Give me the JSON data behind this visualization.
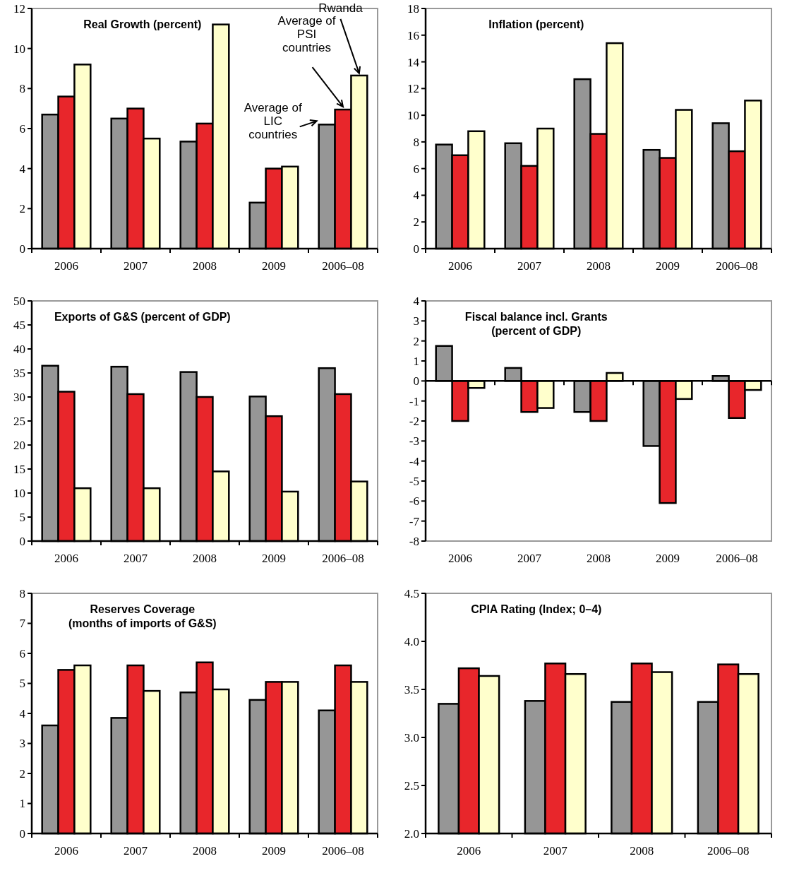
{
  "chart_data": [
    {
      "type": "bar",
      "title": "Real Growth (percent)",
      "categories": [
        "2006",
        "2007",
        "2008",
        "2009",
        "2006–08"
      ],
      "ylim": [
        0,
        12
      ],
      "yticks": [
        0,
        2,
        4,
        6,
        8,
        10,
        12
      ],
      "series": [
        {
          "name": "Average of LIC countries",
          "color": "#969696",
          "values": [
            6.7,
            6.5,
            5.35,
            2.3,
            6.2
          ]
        },
        {
          "name": "Average of PSI countries",
          "color": "#e8262b",
          "values": [
            7.6,
            7.0,
            6.25,
            4.0,
            6.95
          ]
        },
        {
          "name": "Rwanda",
          "color": "#ffffcc",
          "values": [
            9.2,
            5.5,
            11.2,
            4.1,
            8.65
          ]
        }
      ]
    },
    {
      "type": "bar",
      "title": "Inflation (percent)",
      "categories": [
        "2006",
        "2007",
        "2008",
        "2009",
        "2006–08"
      ],
      "ylim": [
        0,
        18
      ],
      "yticks": [
        0,
        2,
        4,
        6,
        8,
        10,
        12,
        14,
        16,
        18
      ],
      "series": [
        {
          "color": "#969696",
          "values": [
            7.8,
            7.9,
            12.7,
            7.4,
            9.4
          ]
        },
        {
          "color": "#e8262b",
          "values": [
            7.0,
            6.2,
            8.6,
            6.8,
            7.3
          ]
        },
        {
          "color": "#ffffcc",
          "values": [
            8.8,
            9.0,
            15.4,
            10.4,
            11.1
          ]
        }
      ]
    },
    {
      "type": "bar",
      "title": "Exports of G&S (percent of GDP)",
      "categories": [
        "2006",
        "2007",
        "2008",
        "2009",
        "2006–08"
      ],
      "ylim": [
        0,
        50
      ],
      "yticks": [
        0,
        5,
        10,
        15,
        20,
        25,
        30,
        35,
        40,
        45,
        50
      ],
      "series": [
        {
          "color": "#969696",
          "values": [
            36.5,
            36.3,
            35.2,
            30.1,
            36.0
          ]
        },
        {
          "color": "#e8262b",
          "values": [
            31.1,
            30.6,
            30.0,
            26.0,
            30.6
          ]
        },
        {
          "color": "#ffffcc",
          "values": [
            11.0,
            11.0,
            14.5,
            10.3,
            12.4
          ]
        }
      ]
    },
    {
      "type": "bar",
      "title": "Fiscal balance incl. Grants\n(percent of GDP)",
      "categories": [
        "2006",
        "2007",
        "2008",
        "2009",
        "2006–08"
      ],
      "ylim": [
        -8,
        4
      ],
      "yticks": [
        -8,
        -7,
        -6,
        -5,
        -4,
        -3,
        -2,
        -1,
        0,
        1,
        2,
        3,
        4
      ],
      "series": [
        {
          "color": "#969696",
          "values": [
            1.75,
            0.65,
            -1.55,
            -3.25,
            0.25
          ]
        },
        {
          "color": "#e8262b",
          "values": [
            -2.0,
            -1.55,
            -2.0,
            -6.1,
            -1.85
          ]
        },
        {
          "color": "#ffffcc",
          "values": [
            -0.35,
            -1.35,
            0.4,
            -0.9,
            -0.45
          ]
        }
      ]
    },
    {
      "type": "bar",
      "title": "Reserves Coverage\n(months of imports of G&S)",
      "categories": [
        "2006",
        "2007",
        "2008",
        "2009",
        "2006–08"
      ],
      "ylim": [
        0,
        8
      ],
      "yticks": [
        0,
        1,
        2,
        3,
        4,
        5,
        6,
        7,
        8
      ],
      "series": [
        {
          "color": "#969696",
          "values": [
            3.6,
            3.85,
            4.7,
            4.45,
            4.1
          ]
        },
        {
          "color": "#e8262b",
          "values": [
            5.45,
            5.6,
            5.7,
            5.05,
            5.6
          ]
        },
        {
          "color": "#ffffcc",
          "values": [
            5.6,
            4.75,
            4.8,
            5.05,
            5.05
          ]
        }
      ]
    },
    {
      "type": "bar",
      "title": "CPIA Rating (Index; 0–4)",
      "categories": [
        "2006",
        "2007",
        "2008",
        "2006–08"
      ],
      "ylim": [
        2,
        4.5
      ],
      "yticks": [
        {
          "value": 2,
          "label": "2.0"
        },
        {
          "value": 2.5,
          "label": "2.5"
        },
        {
          "value": 3,
          "label": "3.0"
        },
        {
          "value": 3.5,
          "label": "3.5"
        },
        {
          "value": 4,
          "label": "4.0"
        },
        {
          "value": 4.5,
          "label": "4.5"
        }
      ],
      "series": [
        {
          "color": "#969696",
          "values": [
            3.35,
            3.38,
            3.37,
            3.37
          ]
        },
        {
          "color": "#e8262b",
          "values": [
            3.72,
            3.77,
            3.77,
            3.76
          ]
        },
        {
          "color": "#ffffcc",
          "values": [
            3.64,
            3.66,
            3.68,
            3.66
          ]
        }
      ]
    }
  ]
}
